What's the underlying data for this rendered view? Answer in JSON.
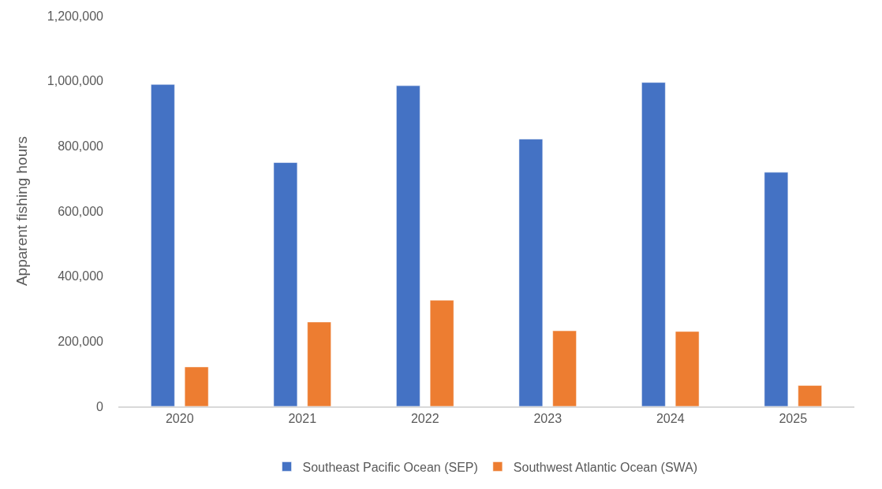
{
  "chart_data": {
    "type": "bar",
    "ylabel": "Apparent fishing hours",
    "categories": [
      "2020",
      "2021",
      "2022",
      "2023",
      "2024",
      "2025"
    ],
    "series": [
      {
        "name": "Southeast Pacific Ocean (SEP)",
        "color": "#4472c4",
        "values": [
          989000,
          749000,
          985000,
          821000,
          995000,
          719000
        ]
      },
      {
        "name": "Southwest Atlantic Ocean (SWA)",
        "color": "#ed7d31",
        "values": [
          121000,
          259000,
          326000,
          232000,
          230000,
          64000
        ]
      }
    ],
    "ylim": [
      0,
      1200000
    ],
    "yticks": [
      {
        "value": 0,
        "label": "0"
      },
      {
        "value": 200000,
        "label": "200,000"
      },
      {
        "value": 400000,
        "label": "400,000"
      },
      {
        "value": 600000,
        "label": "600,000"
      },
      {
        "value": 800000,
        "label": "800,000"
      },
      {
        "value": 1000000,
        "label": "1,000,000"
      },
      {
        "value": 1200000,
        "label": "1,200,000"
      }
    ],
    "grid": false,
    "legend": "bottom"
  }
}
